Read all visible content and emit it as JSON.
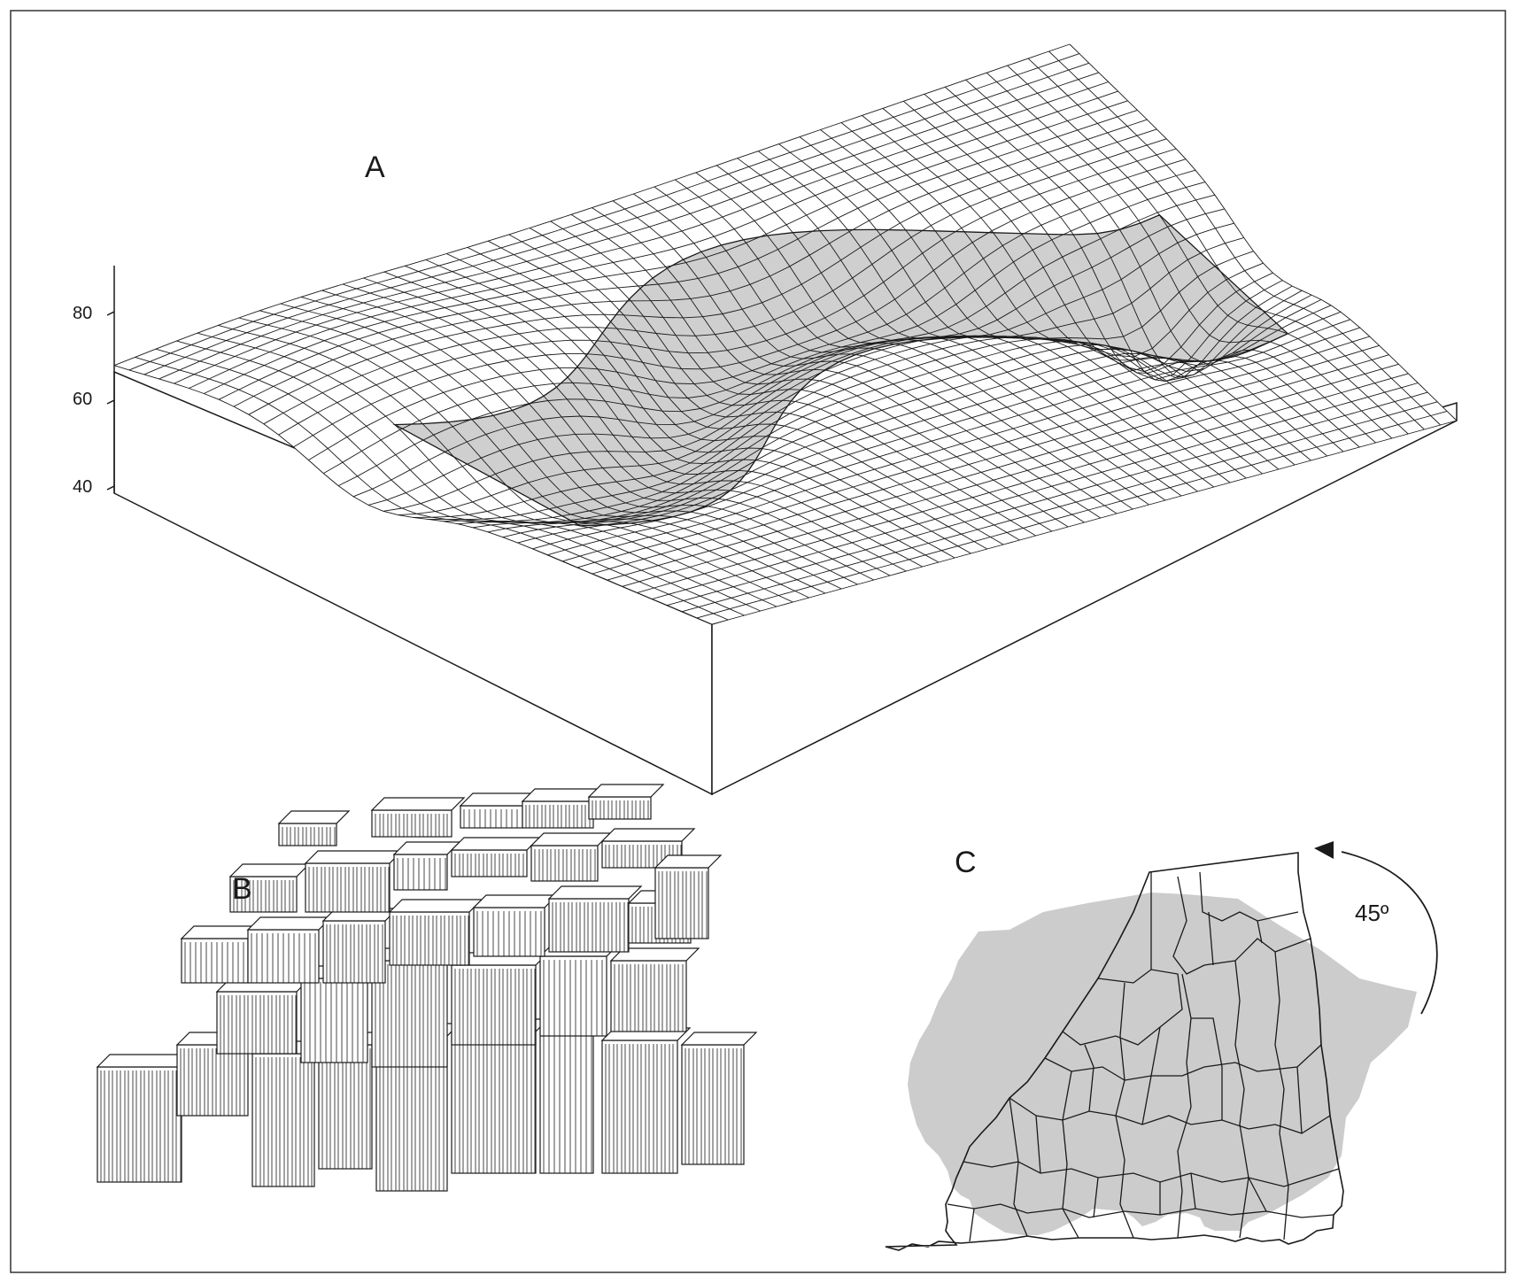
{
  "panels": {
    "a": {
      "label": "A"
    },
    "b": {
      "label": "B"
    },
    "c": {
      "label": "C",
      "rotation_label": "45º"
    }
  },
  "z_axis": {
    "ticks": [
      "80",
      "60",
      "40"
    ]
  },
  "colors": {
    "line": "#1a1a1a",
    "overlay": "#cccccc",
    "background": "#ffffff"
  },
  "icons": {
    "rotation_arrow": "curved-arrow-icon"
  }
}
